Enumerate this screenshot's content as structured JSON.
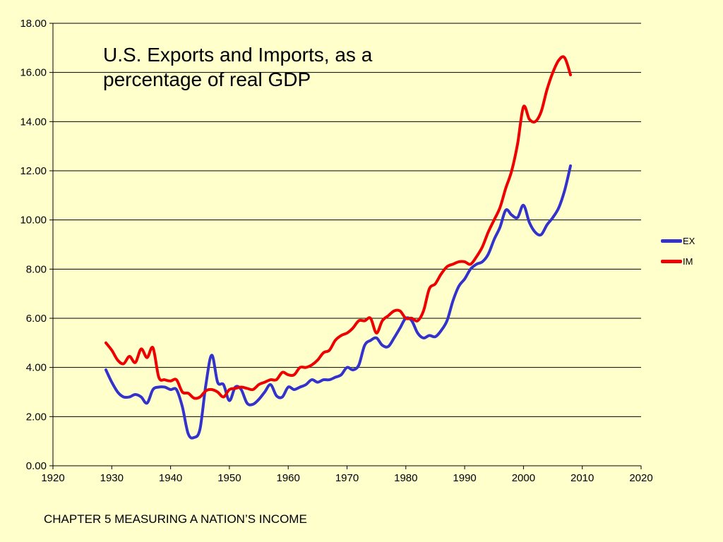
{
  "colors": {
    "background": "#ffffcc",
    "axis": "#000000",
    "gridline": "#000000",
    "text": "#000000"
  },
  "caption": "CHAPTER 5 MEASURING A NATION’S INCOME",
  "chart_data": {
    "type": "line",
    "title": "U.S. Exports and Imports, as a percentage of real GDP",
    "xlabel": "",
    "ylabel": "",
    "xlim": [
      1920,
      2020
    ],
    "ylim": [
      0,
      18
    ],
    "x_ticks": [
      1920,
      1930,
      1940,
      1950,
      1960,
      1970,
      1980,
      1990,
      2000,
      2010,
      2020
    ],
    "y_ticks": [
      "0.00",
      "2.00",
      "4.00",
      "6.00",
      "8.00",
      "10.00",
      "12.00",
      "14.00",
      "16.00",
      "18.00"
    ],
    "grid": "horizontal",
    "legend_position": "right",
    "years": [
      1929,
      1930,
      1931,
      1932,
      1933,
      1934,
      1935,
      1936,
      1937,
      1938,
      1939,
      1940,
      1941,
      1942,
      1943,
      1944,
      1945,
      1946,
      1947,
      1948,
      1949,
      1950,
      1951,
      1952,
      1953,
      1954,
      1955,
      1956,
      1957,
      1958,
      1959,
      1960,
      1961,
      1962,
      1963,
      1964,
      1965,
      1966,
      1967,
      1968,
      1969,
      1970,
      1971,
      1972,
      1973,
      1974,
      1975,
      1976,
      1977,
      1978,
      1979,
      1980,
      1981,
      1982,
      1983,
      1984,
      1985,
      1986,
      1987,
      1988,
      1989,
      1990,
      1991,
      1992,
      1993,
      1994,
      1995,
      1996,
      1997,
      1998,
      1999,
      2000,
      2001,
      2002,
      2003,
      2004,
      2005,
      2006,
      2007,
      2008
    ],
    "series": [
      {
        "name": "EX",
        "color": "#3333cc",
        "values": [
          3.9,
          3.4,
          3.0,
          2.8,
          2.8,
          2.9,
          2.8,
          2.55,
          3.1,
          3.2,
          3.2,
          3.1,
          3.1,
          2.4,
          1.3,
          1.15,
          1.5,
          3.3,
          4.5,
          3.4,
          3.3,
          2.65,
          3.2,
          3.1,
          2.55,
          2.5,
          2.7,
          3.0,
          3.3,
          2.85,
          2.8,
          3.2,
          3.1,
          3.2,
          3.3,
          3.5,
          3.4,
          3.5,
          3.5,
          3.6,
          3.7,
          4.0,
          3.9,
          4.1,
          4.9,
          5.1,
          5.2,
          4.9,
          4.85,
          5.2,
          5.6,
          6.0,
          5.9,
          5.4,
          5.2,
          5.3,
          5.25,
          5.5,
          5.9,
          6.7,
          7.3,
          7.6,
          8.0,
          8.2,
          8.3,
          8.6,
          9.2,
          9.7,
          10.4,
          10.2,
          10.1,
          10.6,
          9.9,
          9.5,
          9.4,
          9.8,
          10.1,
          10.5,
          11.2,
          12.2
        ]
      },
      {
        "name": "IM",
        "color": "#ee0000",
        "values": [
          5.0,
          4.7,
          4.3,
          4.15,
          4.45,
          4.2,
          4.75,
          4.4,
          4.8,
          3.6,
          3.5,
          3.45,
          3.5,
          3.0,
          2.95,
          2.75,
          2.8,
          3.05,
          3.1,
          3.0,
          2.8,
          3.1,
          3.15,
          3.2,
          3.15,
          3.1,
          3.3,
          3.4,
          3.5,
          3.5,
          3.8,
          3.7,
          3.7,
          4.0,
          4.0,
          4.1,
          4.3,
          4.6,
          4.7,
          5.1,
          5.3,
          5.4,
          5.6,
          5.9,
          5.9,
          6.0,
          5.4,
          5.9,
          6.1,
          6.3,
          6.3,
          6.0,
          6.0,
          5.9,
          6.3,
          7.2,
          7.4,
          7.8,
          8.1,
          8.2,
          8.3,
          8.3,
          8.2,
          8.5,
          8.9,
          9.5,
          10.0,
          10.5,
          11.3,
          12.0,
          13.1,
          14.6,
          14.1,
          14.0,
          14.4,
          15.3,
          16.0,
          16.5,
          16.6,
          15.9
        ]
      }
    ]
  }
}
